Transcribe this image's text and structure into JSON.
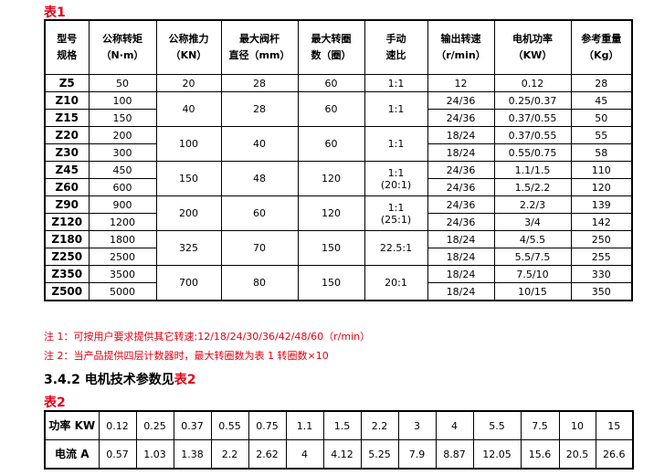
{
  "table1": {
    "caption": "表1",
    "headers": [
      [
        "型号",
        "规格"
      ],
      [
        "公称转矩",
        "（N·m）"
      ],
      [
        "公称推力",
        "（KN）"
      ],
      [
        "最大阀杆",
        "直径（mm）"
      ],
      [
        "最大转圈",
        "数（圈）"
      ],
      [
        "手动",
        "速比"
      ],
      [
        "输出转速",
        "（r/min）"
      ],
      [
        "电机功率",
        "（KW）"
      ],
      [
        "参考重量",
        "（Kg）"
      ]
    ],
    "groups": [
      {
        "thrust": "20",
        "stem": "28",
        "turns": "60",
        "ratio": [
          "1:1"
        ],
        "rows": [
          {
            "model": "Z5",
            "torque": "50",
            "speed": "12",
            "power": "0.12",
            "weight": "28"
          }
        ]
      },
      {
        "thrust": "40",
        "stem": "28",
        "turns": "60",
        "ratio": [
          "1:1"
        ],
        "rows": [
          {
            "model": "Z10",
            "torque": "100",
            "speed": "24/36",
            "power": "0.25/0.37",
            "weight": "45"
          },
          {
            "model": "Z15",
            "torque": "150",
            "speed": "24/36",
            "power": "0.37/0.55",
            "weight": "50"
          }
        ]
      },
      {
        "thrust": "100",
        "stem": "40",
        "turns": "60",
        "ratio": [
          "1:1"
        ],
        "rows": [
          {
            "model": "Z20",
            "torque": "200",
            "speed": "18/24",
            "power": "0.37/0.55",
            "weight": "55"
          },
          {
            "model": "Z30",
            "torque": "300",
            "speed": "18/24",
            "power": "0.55/0.75",
            "weight": "58"
          }
        ]
      },
      {
        "thrust": "150",
        "stem": "48",
        "turns": "120",
        "ratio": [
          "1:1",
          "(20:1)"
        ],
        "rows": [
          {
            "model": "Z45",
            "torque": "450",
            "speed": "24/36",
            "power": "1.1/1.5",
            "weight": "110"
          },
          {
            "model": "Z60",
            "torque": "600",
            "speed": "24/36",
            "power": "1.5/2.2",
            "weight": "120"
          }
        ]
      },
      {
        "thrust": "200",
        "stem": "60",
        "turns": "120",
        "ratio": [
          "1:1",
          "(25:1)"
        ],
        "rows": [
          {
            "model": "Z90",
            "torque": "900",
            "speed": "24/36",
            "power": "2.2/3",
            "weight": "139"
          },
          {
            "model": "Z120",
            "torque": "1200",
            "speed": "24/36",
            "power": "3/4",
            "weight": "142"
          }
        ]
      },
      {
        "thrust": "325",
        "stem": "70",
        "turns": "150",
        "ratio": [
          "22.5:1"
        ],
        "rows": [
          {
            "model": "Z180",
            "torque": "1800",
            "speed": "18/24",
            "power": "4/5.5",
            "weight": "250"
          },
          {
            "model": "Z250",
            "torque": "2500",
            "speed": "18/24",
            "power": "5.5/7.5",
            "weight": "255"
          }
        ]
      },
      {
        "thrust": "700",
        "stem": "80",
        "turns": "150",
        "ratio": [
          "20:1"
        ],
        "rows": [
          {
            "model": "Z350",
            "torque": "3500",
            "speed": "18/24",
            "power": "7.5/10",
            "weight": "330"
          },
          {
            "model": "Z500",
            "torque": "5000",
            "speed": "18/24",
            "power": "10/15",
            "weight": "350"
          }
        ]
      }
    ]
  },
  "notes": [
    "注 1：可按用户要求提供其它转速:12/18/24/30/36/42/48/60（r/min）",
    "注 2：当产品提供四层计数器时，最大转圈数为表 1 转圈数×10"
  ],
  "section": {
    "text": "3.4.2 电机技术参数见",
    "ref": "表2"
  },
  "table2": {
    "caption": "表2",
    "rows": [
      {
        "label": "功率 KW",
        "values": [
          "0.12",
          "0.25",
          "0.37",
          "0.55",
          "0.75",
          "1.1",
          "1.5",
          "2.2",
          "3",
          "4",
          "5.5",
          "7.5",
          "10",
          "15"
        ]
      },
      {
        "label": "电流 A",
        "values": [
          "0.57",
          "1.03",
          "1.38",
          "2.2",
          "2.62",
          "4",
          "4.12",
          "5.25",
          "7.9",
          "8.87",
          "12.05",
          "15.6",
          "20.5",
          "26.6"
        ]
      }
    ]
  },
  "colors": {
    "accent": "#e60012"
  }
}
